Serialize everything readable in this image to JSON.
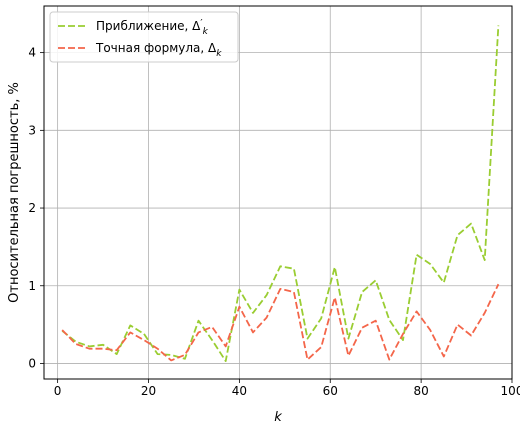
{
  "chart_data": {
    "type": "line",
    "title": "",
    "xlabel": "k",
    "ylabel": "Относительная погрешность, %",
    "xlim": [
      -3,
      100
    ],
    "ylim": [
      -0.2,
      4.6
    ],
    "xticks": [
      0,
      20,
      40,
      60,
      80,
      100
    ],
    "yticks": [
      0,
      1,
      2,
      3,
      4
    ],
    "grid": true,
    "legend_position": "top-left",
    "series": [
      {
        "name": "Приближение, Δ'k",
        "label_main": "Приближение, Δ",
        "label_prime": "′",
        "label_sub": "k",
        "color": "#9acd32",
        "dash": "dashed",
        "x": [
          1,
          4,
          7,
          10,
          13,
          16,
          19,
          22,
          25,
          28,
          31,
          34,
          37,
          40,
          43,
          46,
          49,
          52,
          55,
          58,
          61,
          64,
          67,
          70,
          73,
          76,
          79,
          82,
          85,
          88,
          91,
          94,
          97
        ],
        "y": [
          0.42,
          0.28,
          0.22,
          0.24,
          0.12,
          0.49,
          0.38,
          0.12,
          0.11,
          0.06,
          0.55,
          0.3,
          0.03,
          0.95,
          0.65,
          0.88,
          1.25,
          1.22,
          0.32,
          0.58,
          1.24,
          0.32,
          0.92,
          1.07,
          0.56,
          0.3,
          1.4,
          1.28,
          1.04,
          1.65,
          1.8,
          1.33,
          4.35
        ]
      },
      {
        "name": "Точная формула, Δk",
        "label_main": "Точная формула, Δ",
        "label_prime": "",
        "label_sub": "k",
        "color": "#f4664a",
        "dash": "dashed",
        "x": [
          1,
          4,
          7,
          10,
          13,
          16,
          19,
          22,
          25,
          28,
          31,
          34,
          37,
          40,
          43,
          46,
          49,
          52,
          55,
          58,
          61,
          64,
          67,
          70,
          73,
          76,
          79,
          82,
          85,
          88,
          91,
          94,
          97
        ],
        "y": [
          0.43,
          0.25,
          0.19,
          0.19,
          0.17,
          0.4,
          0.3,
          0.19,
          0.04,
          0.11,
          0.4,
          0.47,
          0.22,
          0.73,
          0.4,
          0.59,
          0.96,
          0.92,
          0.05,
          0.21,
          0.85,
          0.1,
          0.46,
          0.55,
          0.05,
          0.38,
          0.67,
          0.43,
          0.09,
          0.5,
          0.36,
          0.65,
          1.02
        ]
      }
    ]
  }
}
